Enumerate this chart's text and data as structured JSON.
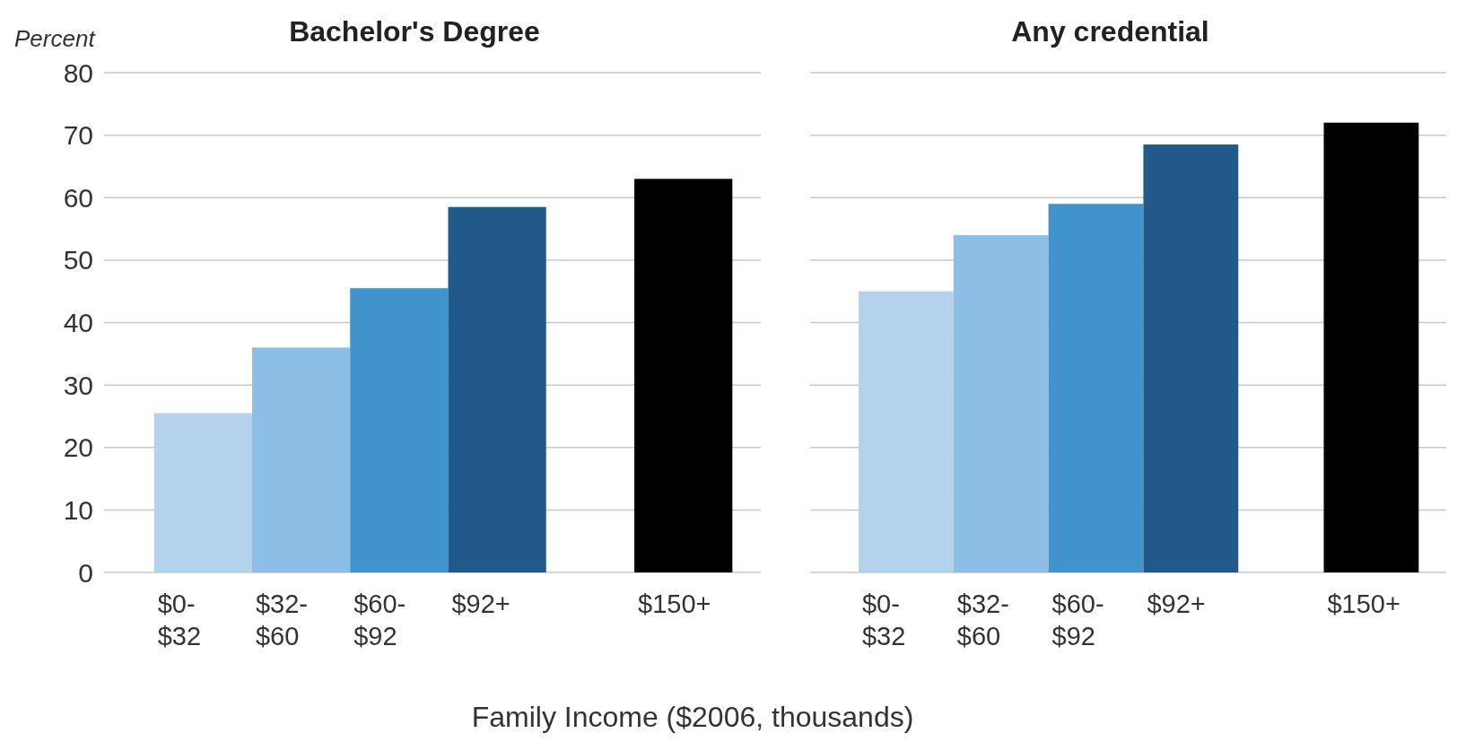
{
  "chart_data": [
    {
      "type": "bar",
      "title": "Bachelor's Degree",
      "ylabel": "Percent",
      "xlabel": "Family Income ($2006, thousands)",
      "categories": [
        "$0-$32",
        "$32-$60",
        "$60-$92",
        "$92+",
        "$150+"
      ],
      "values": [
        25.5,
        36,
        45.5,
        58.5,
        63
      ],
      "colors": [
        "#b4d2ec",
        "#8dbfe6",
        "#4193cc",
        "#215a8a",
        "#000000"
      ],
      "ylim": [
        0,
        80
      ],
      "yticks": [
        0,
        10,
        20,
        30,
        40,
        50,
        60,
        70,
        80
      ],
      "grid": "y"
    },
    {
      "type": "bar",
      "title": "Any credential",
      "categories": [
        "$0-$32",
        "$32-$60",
        "$60-$92",
        "$92+",
        "$150+"
      ],
      "values": [
        45,
        54,
        59,
        68.5,
        72
      ],
      "colors": [
        "#b4d2ec",
        "#8dbfe6",
        "#4193cc",
        "#215a8a",
        "#000000"
      ],
      "ylim": [
        0,
        80
      ],
      "yticks": [
        0,
        10,
        20,
        30,
        40,
        50,
        60,
        70,
        80
      ],
      "grid": "y",
      "tick_labels": "x"
    }
  ]
}
